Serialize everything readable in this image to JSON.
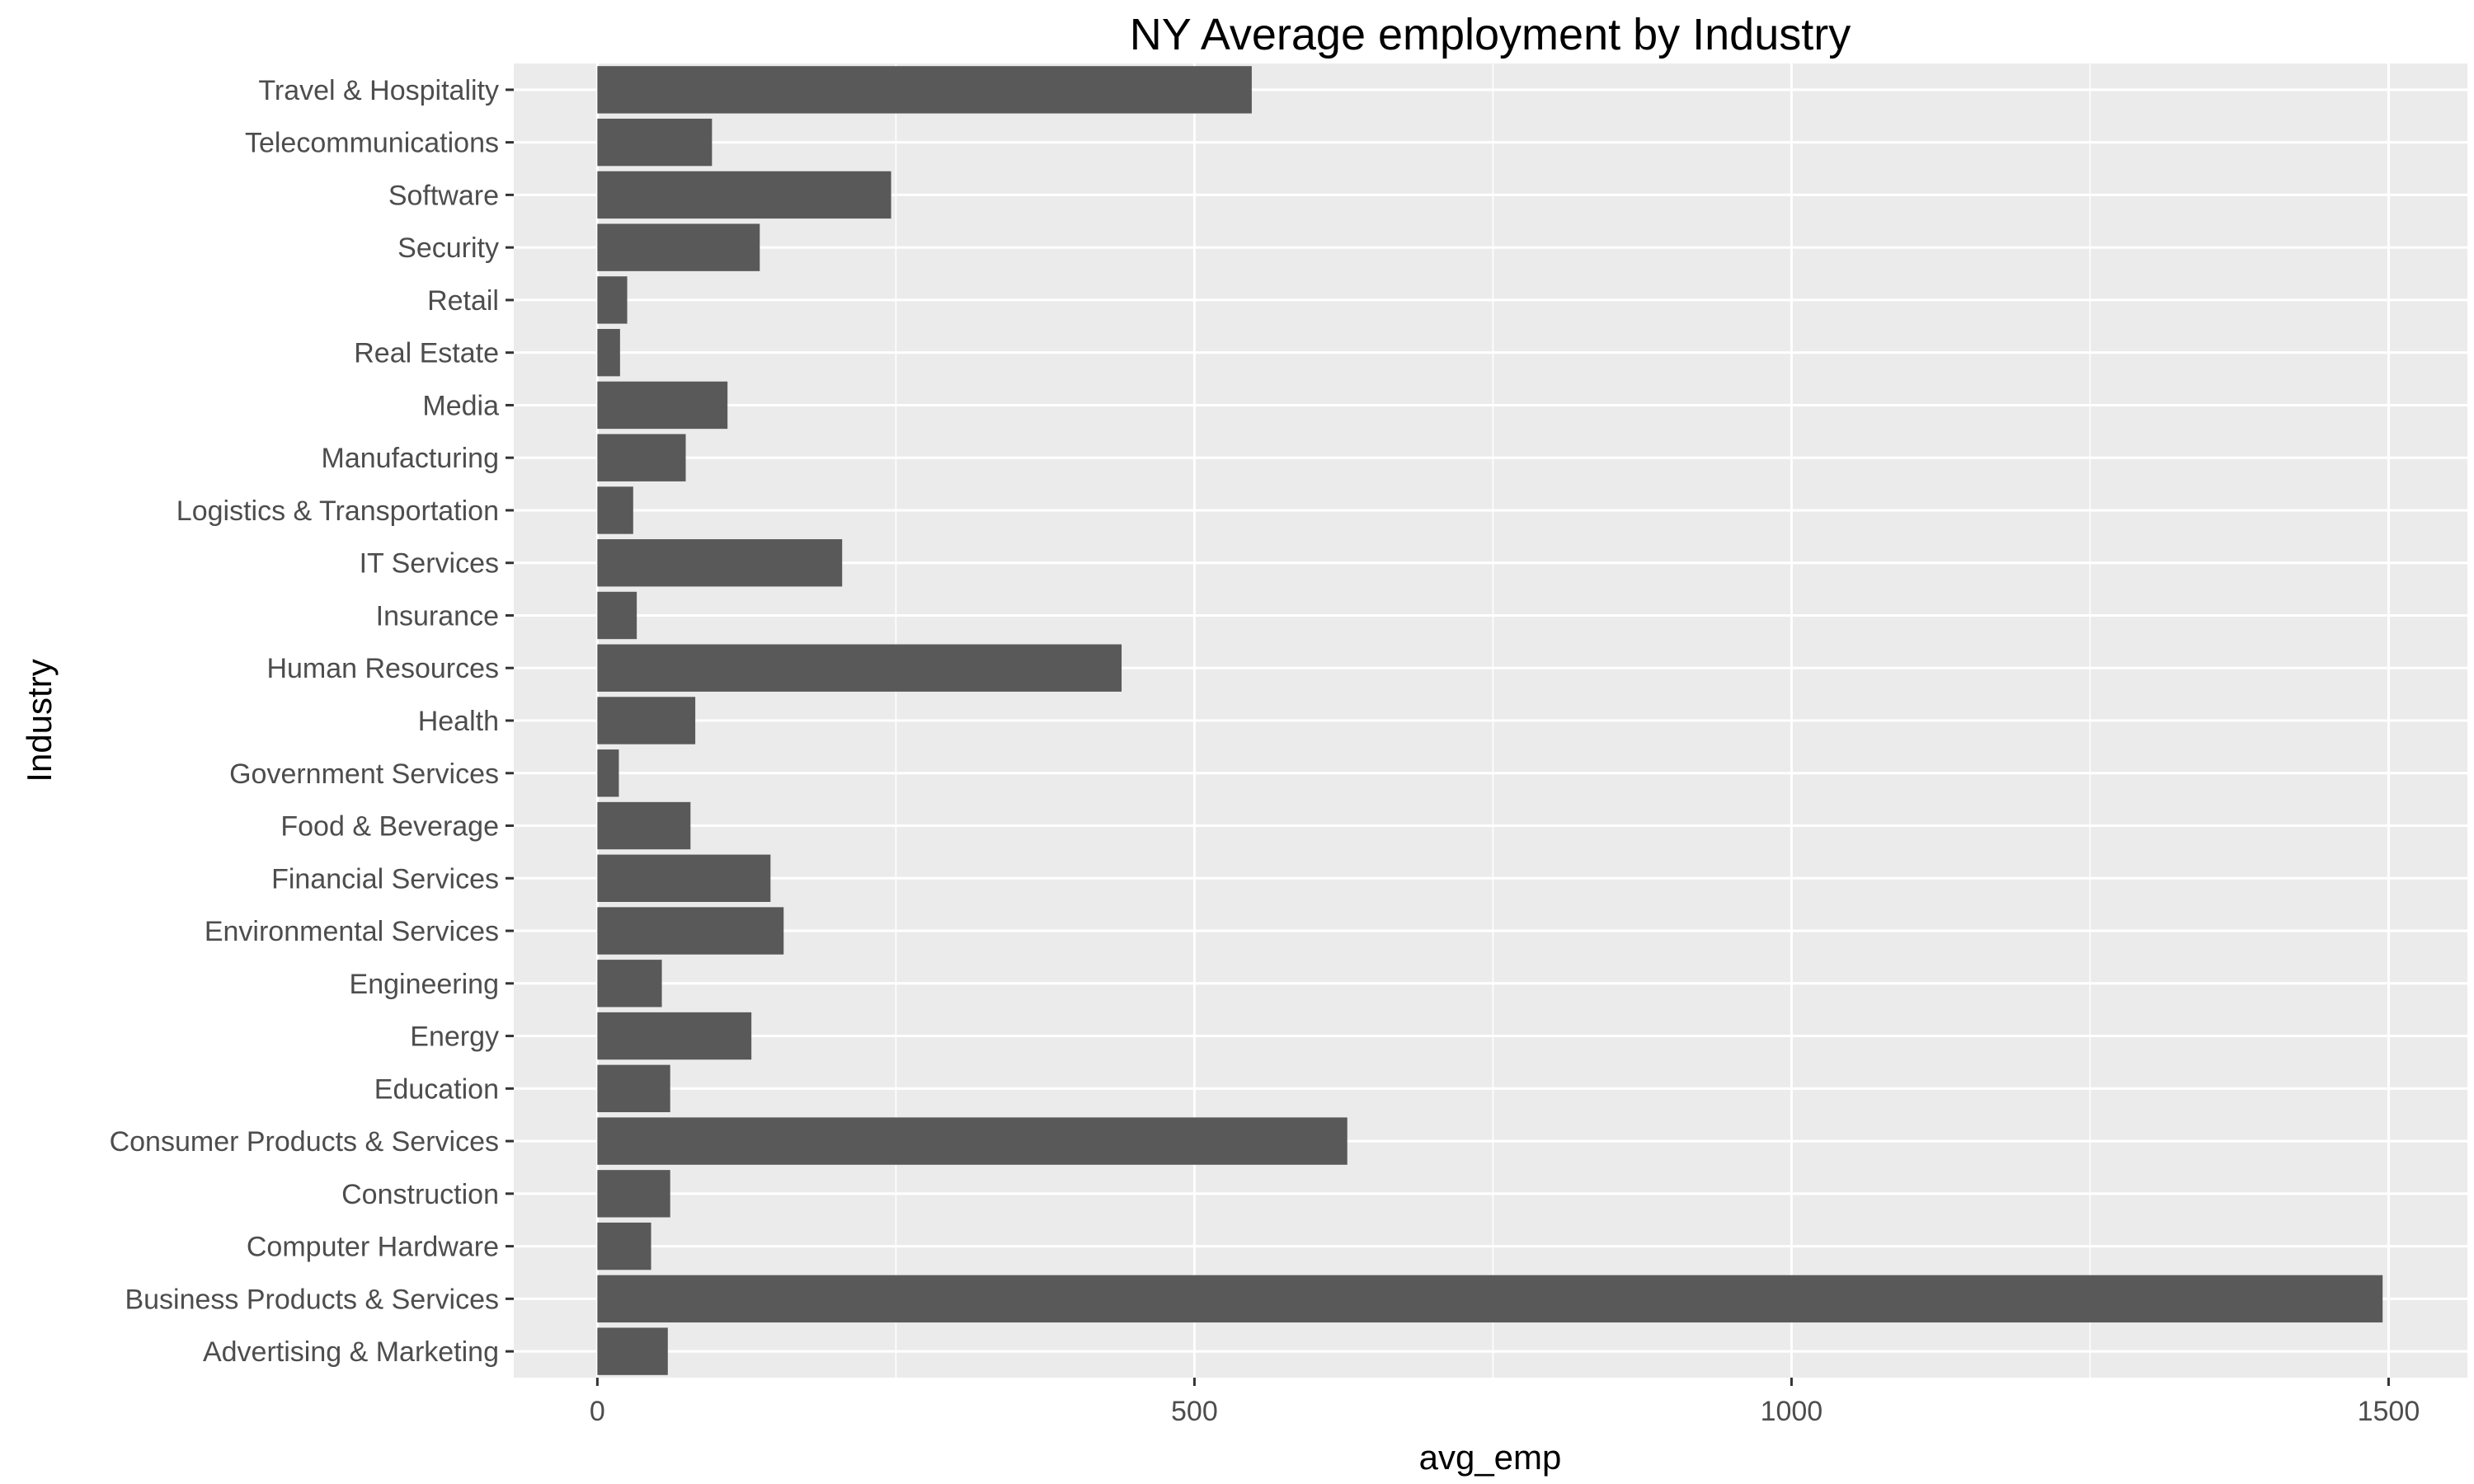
{
  "chart_data": {
    "type": "bar",
    "orientation": "horizontal",
    "title": "NY Average employment by Industry",
    "xlabel": "avg_emp",
    "ylabel": "Industry",
    "categories": [
      "Advertising & Marketing",
      "Business Products & Services",
      "Computer Hardware",
      "Construction",
      "Consumer Products & Services",
      "Education",
      "Energy",
      "Engineering",
      "Environmental Services",
      "Financial Services",
      "Food & Beverage",
      "Government Services",
      "Health",
      "Human Resources",
      "Insurance",
      "IT Services",
      "Logistics & Transportation",
      "Manufacturing",
      "Media",
      "Real Estate",
      "Retail",
      "Security",
      "Software",
      "Telecommunications",
      "Travel & Hospitality"
    ],
    "values": [
      59,
      1495,
      45,
      61,
      628,
      61,
      129,
      54,
      156,
      145,
      78,
      18,
      82,
      439,
      33,
      205,
      30,
      74,
      109,
      19,
      25,
      136,
      246,
      96,
      548
    ],
    "xlim": [
      -70,
      1566
    ],
    "xticks": [
      0,
      500,
      1000,
      1500
    ],
    "xtick_labels": [
      "0",
      "500",
      "1000",
      "1500"
    ],
    "grid": true,
    "legend": "none",
    "colors": {
      "bar": "#595959",
      "panel_background": "#ebebeb",
      "grid_line": "#ffffff",
      "tick_label": "#4d4d4d",
      "axis_tick": "#333333",
      "title": "#000000"
    }
  }
}
